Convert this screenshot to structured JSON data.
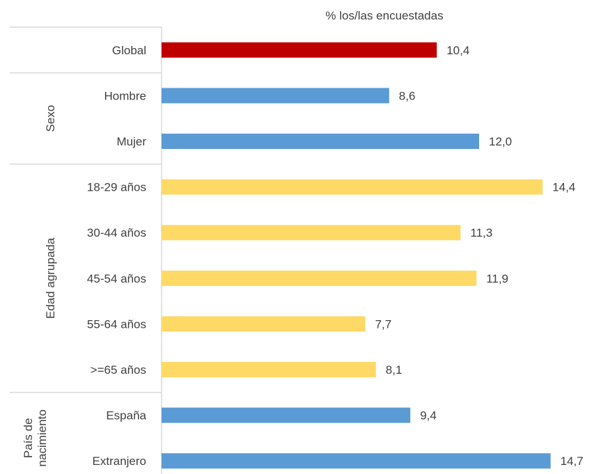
{
  "chart_data": {
    "type": "bar",
    "orientation": "horizontal",
    "title": "% los/las encuestadas",
    "xlim": [
      0,
      16
    ],
    "grid": false,
    "value_labels": true,
    "decimal_separator": ",",
    "groups": [
      {
        "name": "",
        "categories": [
          {
            "label": "Global",
            "value": 10.4,
            "display": "10,4",
            "color": "#c00000"
          }
        ]
      },
      {
        "name": "Sexo",
        "categories": [
          {
            "label": "Hombre",
            "value": 8.6,
            "display": "8,6",
            "color": "#5b9bd5"
          },
          {
            "label": "Mujer",
            "value": 12.0,
            "display": "12,0",
            "color": "#5b9bd5"
          }
        ]
      },
      {
        "name": "Edad agrupada",
        "categories": [
          {
            "label": "18-29 años",
            "value": 14.4,
            "display": "14,4",
            "color": "#ffd966"
          },
          {
            "label": "30-44 años",
            "value": 11.3,
            "display": "11,3",
            "color": "#ffd966"
          },
          {
            "label": "45-54 años",
            "value": 11.9,
            "display": "11,9",
            "color": "#ffd966"
          },
          {
            "label": "55-64 años",
            "value": 7.7,
            "display": "7,7",
            "color": "#ffd966"
          },
          {
            "label": ">=65 años",
            "value": 8.1,
            "display": "8,1",
            "color": "#ffd966"
          }
        ]
      },
      {
        "name": "País de nacimiento",
        "name_lines": [
          "País de",
          "nacimiento"
        ],
        "categories": [
          {
            "label": "España",
            "value": 9.4,
            "display": "9,4",
            "color": "#5b9bd5"
          },
          {
            "label": "Extranjero",
            "value": 14.7,
            "display": "14,7",
            "color": "#5b9bd5"
          }
        ]
      }
    ]
  }
}
